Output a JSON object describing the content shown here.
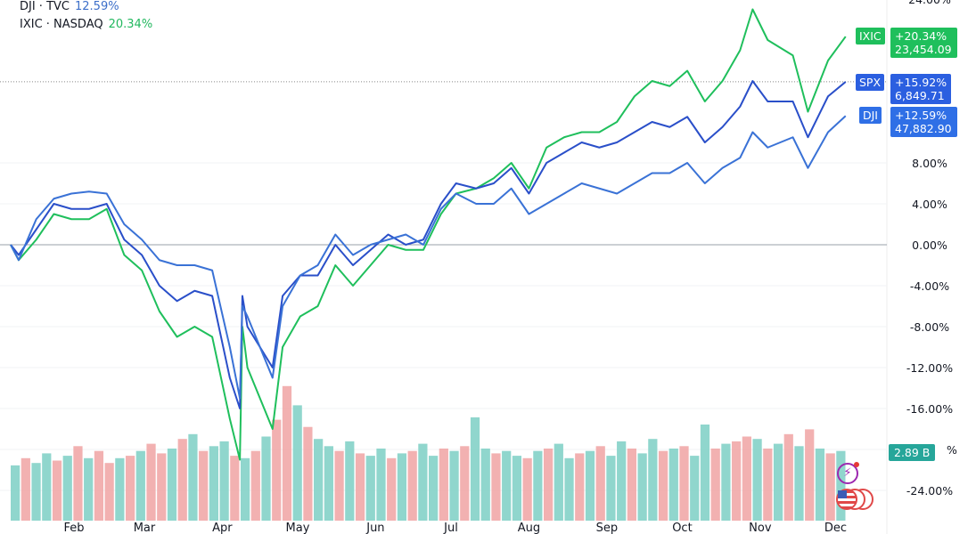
{
  "legend": [
    {
      "label": "DJI · TVC",
      "value": "12.59%",
      "color": "#3d6fc9"
    },
    {
      "label": "IXIC · NASDAQ",
      "value": "20.34%",
      "color": "#22b85f"
    }
  ],
  "price_tags": [
    {
      "symbol": "IXIC",
      "change": "+20.34%",
      "price": "23,454.09",
      "color": "#1fbf5c"
    },
    {
      "symbol": "SPX",
      "change": "+15.92%",
      "price": "6,849.71",
      "color": "#2b5fe0"
    },
    {
      "symbol": "DJI",
      "change": "+12.59%",
      "price": "47,882.90",
      "color": "#2f6fe6"
    }
  ],
  "volume_tag": {
    "value": "2.89 B",
    "color": "#26a69a"
  },
  "icons": [
    "lightning-alert-icon",
    "us-flag-events-icon"
  ],
  "chart_data": {
    "type": "line",
    "ylabel_format": "percent",
    "ylim": [
      -24,
      24
    ],
    "yticks": [
      "24.00%",
      "8.00%",
      "4.00%",
      "0.00%",
      "-4.00%",
      "-8.00%",
      "-12.00%",
      "-16.00%",
      "%",
      "-24.00%"
    ],
    "ytick_values": [
      24,
      8,
      4,
      0,
      -4,
      -8,
      -12,
      -16,
      -20,
      -24
    ],
    "xticks": [
      {
        "label": "Feb",
        "date": "02-01"
      },
      {
        "label": "Mar",
        "date": "03-01"
      },
      {
        "label": "Apr",
        "date": "04-01"
      },
      {
        "label": "May",
        "date": "05-01"
      },
      {
        "label": "Jun",
        "date": "06-01"
      },
      {
        "label": "Jul",
        "date": "07-01"
      },
      {
        "label": "Aug",
        "date": "08-01"
      },
      {
        "label": "Sep",
        "date": "09-01"
      },
      {
        "label": "Oct",
        "date": "10-01"
      },
      {
        "label": "Nov",
        "date": "11-01"
      },
      {
        "label": "Dec",
        "date": "12-01"
      }
    ],
    "x": [
      "01-06",
      "01-10",
      "01-17",
      "01-24",
      "01-31",
      "02-07",
      "02-14",
      "02-21",
      "02-28",
      "03-07",
      "03-14",
      "03-21",
      "03-28",
      "04-04",
      "04-08",
      "04-09",
      "04-11",
      "04-21",
      "04-25",
      "05-02",
      "05-09",
      "05-16",
      "05-23",
      "05-30",
      "06-06",
      "06-13",
      "06-20",
      "06-27",
      "07-03",
      "07-11",
      "07-18",
      "07-25",
      "08-01",
      "08-08",
      "08-15",
      "08-22",
      "08-29",
      "09-05",
      "09-12",
      "09-19",
      "09-26",
      "10-03",
      "10-10",
      "10-17",
      "10-24",
      "10-29",
      "11-04",
      "11-14",
      "11-20",
      "11-28",
      "12-05"
    ],
    "series": [
      {
        "name": "DJI",
        "color": "#3a72d6",
        "values": [
          0,
          -1.5,
          2.5,
          4.5,
          5,
          5.2,
          5,
          2,
          0.5,
          -1.5,
          -2,
          -2,
          -2.5,
          -10,
          -15,
          -6,
          -7,
          -13,
          -6,
          -3,
          -2,
          1,
          -1,
          0,
          0.5,
          1,
          0,
          3.5,
          5,
          4,
          4,
          5.5,
          3,
          4,
          5,
          6,
          5.5,
          5,
          6,
          7,
          7,
          8,
          6,
          7.5,
          8.5,
          11,
          9.5,
          10.5,
          7.5,
          11,
          12.59
        ]
      },
      {
        "name": "SPX",
        "color": "#2a4fc9",
        "values": [
          0,
          -1,
          1.5,
          4,
          3.5,
          3.5,
          4,
          0.5,
          -1,
          -4,
          -5.5,
          -4.5,
          -5,
          -13,
          -16,
          -5,
          -8,
          -12,
          -5,
          -3,
          -3,
          0,
          -2,
          -0.5,
          1,
          0,
          0.5,
          4,
          6,
          5.5,
          6,
          7.5,
          5,
          8,
          9,
          10,
          9.5,
          10,
          11,
          12,
          11.5,
          12.5,
          10,
          11.5,
          13.5,
          16,
          14,
          14,
          10.5,
          14.5,
          15.92
        ]
      },
      {
        "name": "IXIC",
        "color": "#1fbf5c",
        "values": [
          0,
          -1.5,
          0.5,
          3,
          2.5,
          2.5,
          3.5,
          -1,
          -2.5,
          -6.5,
          -9,
          -8,
          -9,
          -17,
          -21,
          -8,
          -12,
          -18,
          -10,
          -7,
          -6,
          -2,
          -4,
          -2,
          0,
          -0.5,
          -0.5,
          3,
          5,
          5.5,
          6.5,
          8,
          5.5,
          9.5,
          10.5,
          11,
          11,
          12,
          14.5,
          16,
          15.5,
          17,
          14,
          16,
          19,
          23,
          20,
          18.5,
          13,
          18,
          20.34
        ]
      }
    ],
    "volume": {
      "unit": "B",
      "up_color": "#7ccfc4",
      "down_color": "#f0a3a3",
      "values": [
        2.3,
        2.6,
        2.4,
        2.8,
        2.5,
        2.7,
        3.1,
        2.6,
        2.9,
        2.4,
        2.6,
        2.7,
        2.9,
        3.2,
        2.8,
        3.0,
        3.4,
        3.6,
        2.9,
        3.1,
        3.3,
        2.7,
        2.6,
        2.9,
        3.5,
        4.2,
        5.6,
        4.8,
        3.9,
        3.4,
        3.1,
        2.9,
        3.3,
        2.8,
        2.7,
        3.0,
        2.6,
        2.8,
        2.9,
        3.2,
        2.7,
        3.0,
        2.9,
        3.1,
        4.3,
        3.0,
        2.8,
        2.9,
        2.7,
        2.6,
        2.9,
        3.0,
        3.2,
        2.6,
        2.8,
        2.9,
        3.1,
        2.7,
        3.3,
        3.0,
        2.8,
        3.4,
        2.9,
        3.0,
        3.1,
        2.7,
        4.0,
        3.0,
        3.2,
        3.3,
        3.5,
        3.4,
        3.0,
        3.2,
        3.6,
        3.1,
        3.8,
        3.0,
        2.8,
        2.9
      ],
      "up": [
        1,
        0,
        1,
        1,
        0,
        1,
        0,
        1,
        0,
        0,
        1,
        0,
        1,
        0,
        0,
        1,
        0,
        1,
        0,
        1,
        1,
        0,
        1,
        0,
        1,
        0,
        0,
        1,
        0,
        1,
        1,
        0,
        1,
        0,
        1,
        1,
        0,
        1,
        0,
        1,
        1,
        0,
        1,
        0,
        1,
        1,
        0,
        1,
        1,
        0,
        1,
        0,
        1,
        1,
        0,
        1,
        0,
        1,
        1,
        0,
        1,
        1,
        0,
        1,
        0,
        1,
        1,
        0,
        1,
        0,
        0,
        1,
        0,
        1,
        0,
        1,
        0,
        1,
        0,
        1
      ]
    }
  }
}
